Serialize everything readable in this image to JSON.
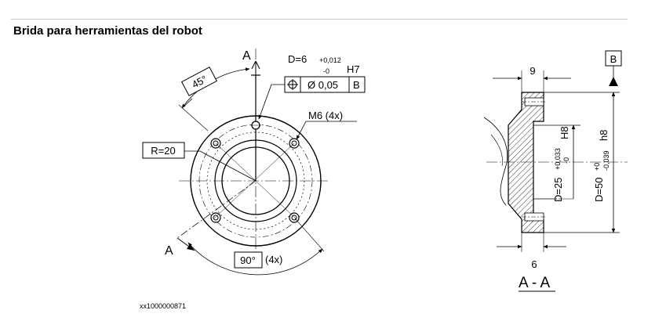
{
  "title": "Brida para herramientas del robot",
  "figure_id": "xx1000000871",
  "front_view": {
    "section_mark_top": "A",
    "section_mark_bottom": "A",
    "angle_label": "45°",
    "pin_hole_label": "D=6",
    "pin_tol_upper": "+0,012",
    "pin_tol_lower": "-0",
    "pin_fit": "H7",
    "fcf_diameter": "Ø 0,05",
    "fcf_datum": "B",
    "thread_label": "M6 (4x)",
    "radius_label": "R=20",
    "spacing_angle": "90°",
    "spacing_count": "(4x)"
  },
  "section_view": {
    "datum_label": "B",
    "width_top": "9",
    "width_bottom": "6",
    "inner_dia_label": "D=25",
    "inner_tol_upper": "+0,033",
    "inner_tol_lower": "-0",
    "inner_fit": "H8",
    "outer_dia_label": "D=50",
    "outer_tol_upper": "+0",
    "outer_tol_lower": "-0,039",
    "outer_fit": "h8",
    "section_name": "A - A"
  }
}
